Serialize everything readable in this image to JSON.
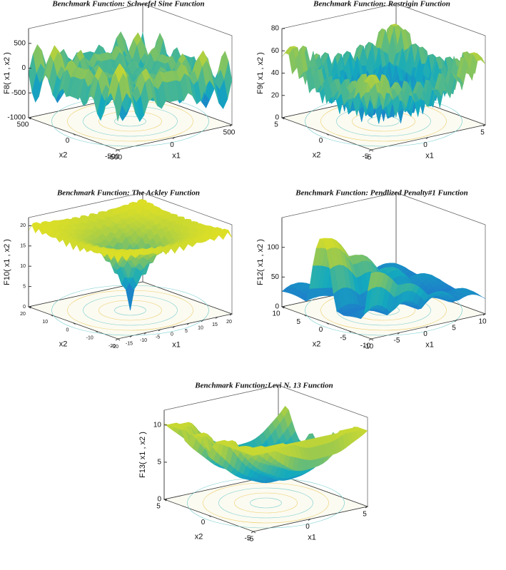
{
  "chart_data": [
    {
      "type": "surface3d",
      "title": "Benchmark Function: Schwefel Sine Function",
      "zlabel": "F8( x1 , x2 )",
      "xlabel": "x1",
      "ylabel": "x2",
      "xlim": [
        -500,
        500
      ],
      "xticks": [
        -500,
        0,
        500
      ],
      "ylim": [
        -500,
        500
      ],
      "yticks": [
        -500,
        0,
        500
      ],
      "zlim": [
        -1000,
        800
      ],
      "zticks": [
        -1000,
        -500,
        0,
        500
      ]
    },
    {
      "type": "surface3d",
      "title": "Benchmark Function: Rastrigin Function",
      "zlabel": "F9( x1 , x2 )",
      "xlabel": "x1",
      "ylabel": "x2",
      "xlim": [
        -5,
        5
      ],
      "xticks": [
        -5,
        0,
        5
      ],
      "ylim": [
        -5,
        5
      ],
      "yticks": [
        -5,
        0,
        5
      ],
      "zlim": [
        0,
        80
      ],
      "zticks": [
        0,
        20,
        40,
        60,
        80
      ]
    },
    {
      "type": "surface3d",
      "title": "Benchmark Function: The Ackley Function",
      "zlabel": "F10( x1 , x2 )",
      "xlabel": "x1",
      "ylabel": "x2",
      "xlim": [
        -20,
        20
      ],
      "xticks": [
        -20,
        -15,
        -10,
        -5,
        0,
        5,
        10,
        15,
        20
      ],
      "ylim": [
        -20,
        20
      ],
      "yticks": [
        -20,
        -10,
        0,
        10,
        20
      ],
      "zlim": [
        0,
        22
      ],
      "zticks": [
        0,
        5,
        10,
        15,
        20
      ]
    },
    {
      "type": "surface3d",
      "title": "Benchmark Function: Pendlized Penalty#1 Function",
      "zlabel": "F12( x1 , x2 )",
      "xlabel": "x1",
      "ylabel": "x2",
      "xlim": [
        -10,
        10
      ],
      "xticks": [
        -10,
        -5,
        0,
        5,
        10
      ],
      "ylim": [
        -10,
        10
      ],
      "yticks": [
        -10,
        -5,
        0,
        5,
        10
      ],
      "zlim": [
        0,
        150
      ],
      "zticks": [
        0,
        50,
        100
      ]
    },
    {
      "type": "surface3d",
      "title": "Benchmark Function:Levi N. 13 Function",
      "zlabel": "F13( x1 , x2 )",
      "xlabel": "x1",
      "ylabel": "x2",
      "xlim": [
        -5,
        5
      ],
      "xticks": [
        -5,
        0,
        5
      ],
      "ylim": [
        -5,
        5
      ],
      "yticks": [
        -5,
        0,
        5
      ],
      "zlim": [
        0,
        12
      ],
      "zticks": [
        0,
        5,
        10
      ]
    }
  ]
}
